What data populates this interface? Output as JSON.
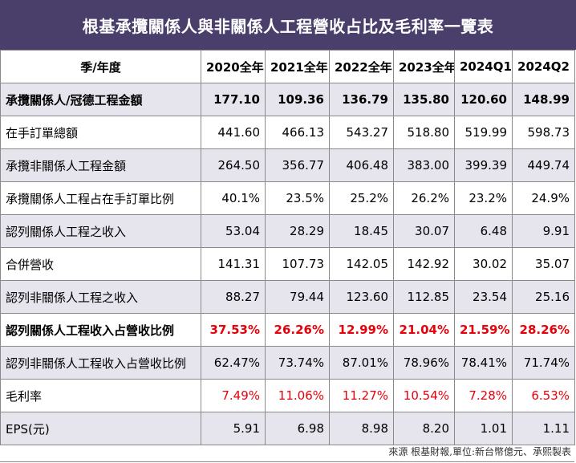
{
  "title": "根基承攬關係人與非關係人工程營收占比及毛利率一覽表",
  "header": [
    "季/年度",
    "2020全年",
    "2021全年",
    "2022全年",
    "2023全年",
    "2024Q1",
    "2024Q2"
  ],
  "rows": [
    {
      "label": "承攬關係人/冠德工程金額",
      "values": [
        "177.10",
        "109.36",
        "136.79",
        "135.80",
        "120.60",
        "148.99"
      ],
      "bold": true,
      "shade": true,
      "red": false
    },
    {
      "label": "在手訂單總額",
      "values": [
        "441.60",
        "466.13",
        "543.27",
        "518.80",
        "519.99",
        "598.73"
      ],
      "bold": false,
      "shade": false,
      "red": false
    },
    {
      "label": "承攬非關係人工程金額",
      "values": [
        "264.50",
        "356.77",
        "406.48",
        "383.00",
        "399.39",
        "449.74"
      ],
      "bold": false,
      "shade": true,
      "red": false
    },
    {
      "label": "承攬關係人工程占在手訂單比例",
      "values": [
        "40.1%",
        "23.5%",
        "25.2%",
        "26.2%",
        "23.2%",
        "24.9%"
      ],
      "bold": false,
      "shade": false,
      "red": false
    },
    {
      "label": "認列關係人工程之收入",
      "values": [
        "53.04",
        "28.29",
        "18.45",
        "30.07",
        "6.48",
        "9.91"
      ],
      "bold": false,
      "shade": true,
      "red": false
    },
    {
      "label": "合併營收",
      "values": [
        "141.31",
        "107.73",
        "142.05",
        "142.92",
        "30.02",
        "35.07"
      ],
      "bold": false,
      "shade": false,
      "red": false
    },
    {
      "label": "認列非關係人工程之收入",
      "values": [
        "88.27",
        "79.44",
        "123.60",
        "112.85",
        "23.54",
        "25.16"
      ],
      "bold": false,
      "shade": true,
      "red": false
    },
    {
      "label": "認列關係人工程收入占營收比例",
      "values": [
        "37.53%",
        "26.26%",
        "12.99%",
        "21.04%",
        "21.59%",
        "28.26%"
      ],
      "bold": true,
      "shade": false,
      "red": true
    },
    {
      "label": "認列非關係人工程收入占營收比例",
      "values": [
        "62.47%",
        "73.74%",
        "87.01%",
        "78.96%",
        "78.41%",
        "71.74%"
      ],
      "bold": false,
      "shade": true,
      "red": false
    },
    {
      "label": "毛利率",
      "values": [
        "7.49%",
        "11.06%",
        "11.27%",
        "10.54%",
        "7.28%",
        "6.53%"
      ],
      "bold": false,
      "shade": false,
      "red": true
    },
    {
      "label": "EPS(元)",
      "values": [
        "5.91",
        "6.98",
        "8.98",
        "8.20",
        "1.01",
        "1.11"
      ],
      "bold": false,
      "shade": true,
      "red": false
    }
  ],
  "source": "來源 根基財報,單位:新台幣億元、承熙製表",
  "colors": {
    "title_bg": "#4a3f6b",
    "shade": "#e6e4ed",
    "red": "#e8000b"
  }
}
